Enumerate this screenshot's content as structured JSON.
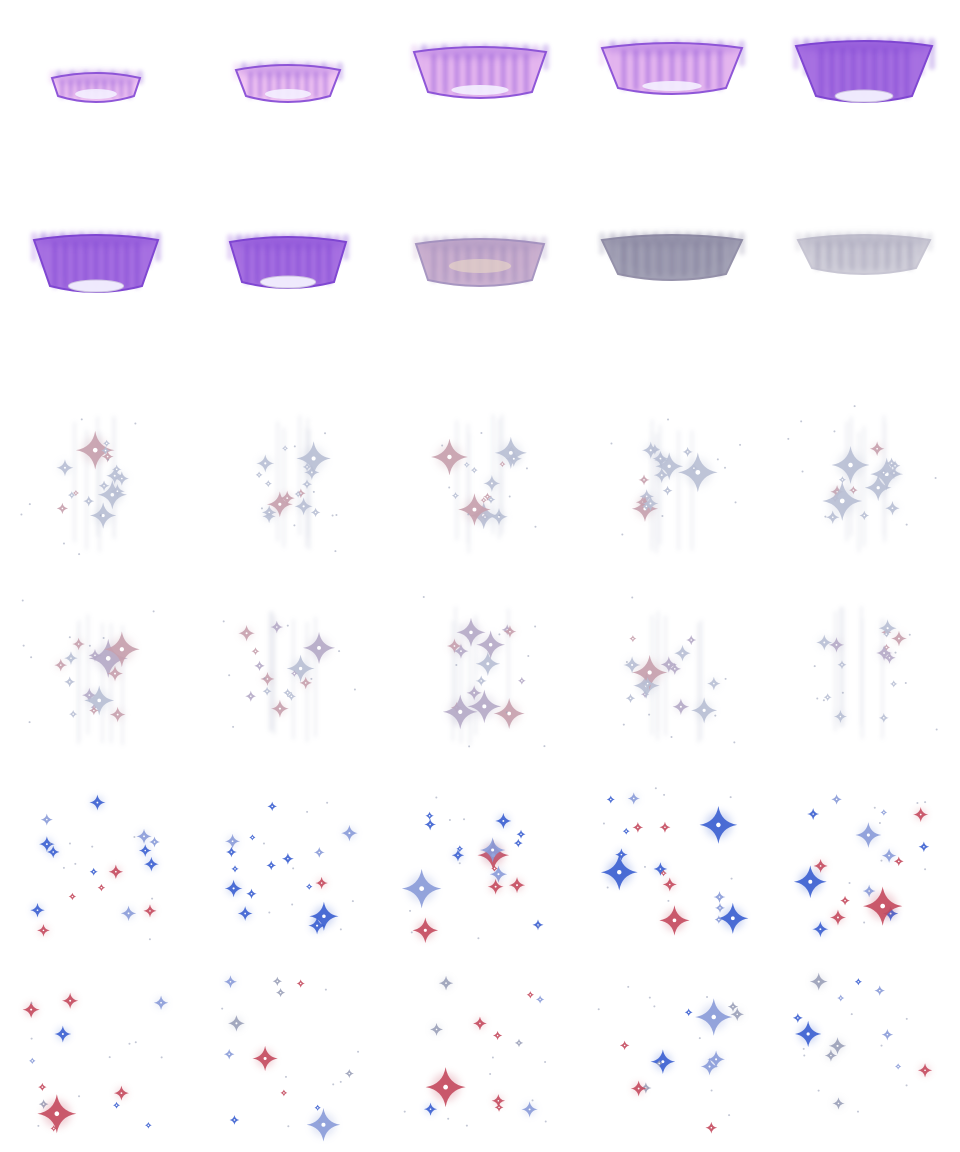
{
  "sheet": {
    "kind": "sprite-sheet",
    "columns": 5,
    "rows": 6,
    "frame_count": 30,
    "background": "#ffffff"
  },
  "colors": {
    "aura_violet": "#8a4fd6",
    "aura_pink": "#f3c6f2",
    "aura_core": "#f4f1ff",
    "aura_gray": "#8c8aa3",
    "sparkle_gray": "#b8bfd4",
    "sparkle_blue": "#3b5fd0",
    "sparkle_red": "#c44a5e"
  },
  "animations": [
    {
      "name": "aura-rise",
      "frames": [
        0,
        1,
        2,
        3,
        4,
        5,
        6,
        7,
        8,
        9
      ]
    },
    {
      "name": "sparkle-scatter",
      "frames": [
        10,
        11,
        12,
        13,
        14,
        15,
        16,
        17,
        18,
        19,
        20,
        21,
        22,
        23,
        24,
        25,
        26,
        27,
        28,
        29
      ]
    }
  ]
}
